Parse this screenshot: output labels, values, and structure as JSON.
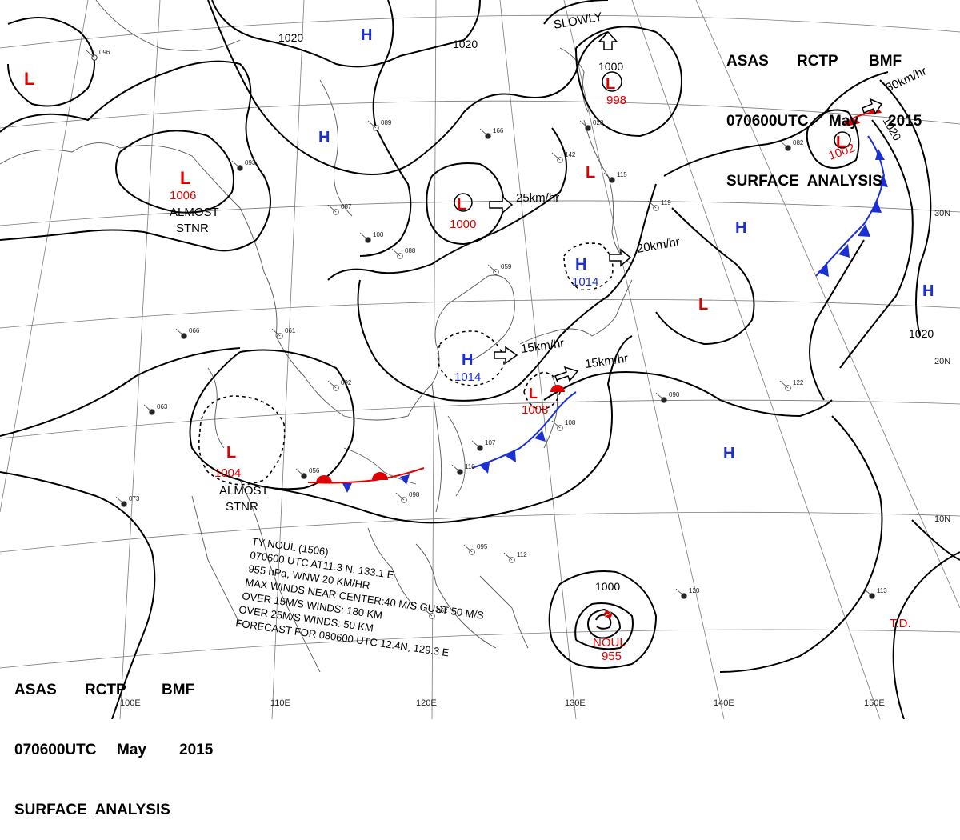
{
  "header_top": {
    "line1": [
      "ASAS",
      "RCTP",
      "BMF"
    ],
    "line2": [
      "070600UTC",
      "May",
      "2015"
    ],
    "line3": "SURFACE  ANALYSIS"
  },
  "header_bottom": {
    "line1": [
      "ASAS",
      "RCTP",
      "BMF"
    ],
    "line2": [
      "070600UTC",
      "May",
      "2015"
    ],
    "line3": "SURFACE  ANALYSIS"
  },
  "colors": {
    "low": "#e00000",
    "high": "#1a2fd6",
    "isobar": "#000000",
    "grid": "#777777"
  },
  "isobar_labels": [
    "1020",
    "1020",
    "1020",
    "1020",
    "1000",
    "1000"
  ],
  "pressure_centers": [
    {
      "type": "L",
      "value": ""
    },
    {
      "type": "L",
      "value": "1006",
      "note": "ALMOST\nSTNR"
    },
    {
      "type": "L",
      "value": "1000"
    },
    {
      "type": "L",
      "value": "998"
    },
    {
      "type": "L",
      "value": ""
    },
    {
      "type": "L",
      "value": "1002"
    },
    {
      "type": "L",
      "value": ""
    },
    {
      "type": "L",
      "value": "1004",
      "note": "ALMOST\nSTNR"
    },
    {
      "type": "L",
      "value": "1008"
    },
    {
      "type": "H",
      "value": ""
    },
    {
      "type": "H",
      "value": ""
    },
    {
      "type": "H",
      "value": "1014"
    },
    {
      "type": "H",
      "value": "1014"
    },
    {
      "type": "H",
      "value": ""
    },
    {
      "type": "H",
      "value": ""
    },
    {
      "type": "H",
      "value": ""
    }
  ],
  "labels": {
    "slowly": "SLOWLY",
    "almost1": "ALMOST",
    "stnr1": "STNR",
    "almost2": "ALMOST",
    "stnr2": "STNR",
    "noul": "NOUL",
    "noul_pressure": "955",
    "td": "T.D."
  },
  "motions": [
    "25km/hr",
    "20km/hr",
    "15km/hr",
    "15km/hr",
    "30km/hr"
  ],
  "typhoon_info": [
    "TY NOUL (1506)",
    "070600 UTC AT11.3 N, 133.1 E",
    "955 hPa, WNW 20 KM/HR",
    "MAX WINDS NEAR CENTER:40 M/S,GUST 50 M/S",
    "OVER 15M/S WINDS: 180 KM",
    "OVER 25M/S WINDS: 50 KM",
    "FORECAST FOR 080600 UTC 12.4N, 129.3 E"
  ],
  "grid_labels": {
    "lon": [
      "100E",
      "110E",
      "120E",
      "130E",
      "140E",
      "150E"
    ],
    "lat": [
      "30N",
      "20N",
      "10N"
    ]
  },
  "station_samples": [
    "096",
    "093",
    "089",
    "166",
    "142",
    "115",
    "119",
    "082",
    "087",
    "100",
    "092",
    "063",
    "061",
    "056",
    "098",
    "107",
    "108",
    "110",
    "112",
    "120",
    "122",
    "090",
    "095",
    "073",
    "062",
    "113",
    "088",
    "066",
    "059",
    "028"
  ]
}
